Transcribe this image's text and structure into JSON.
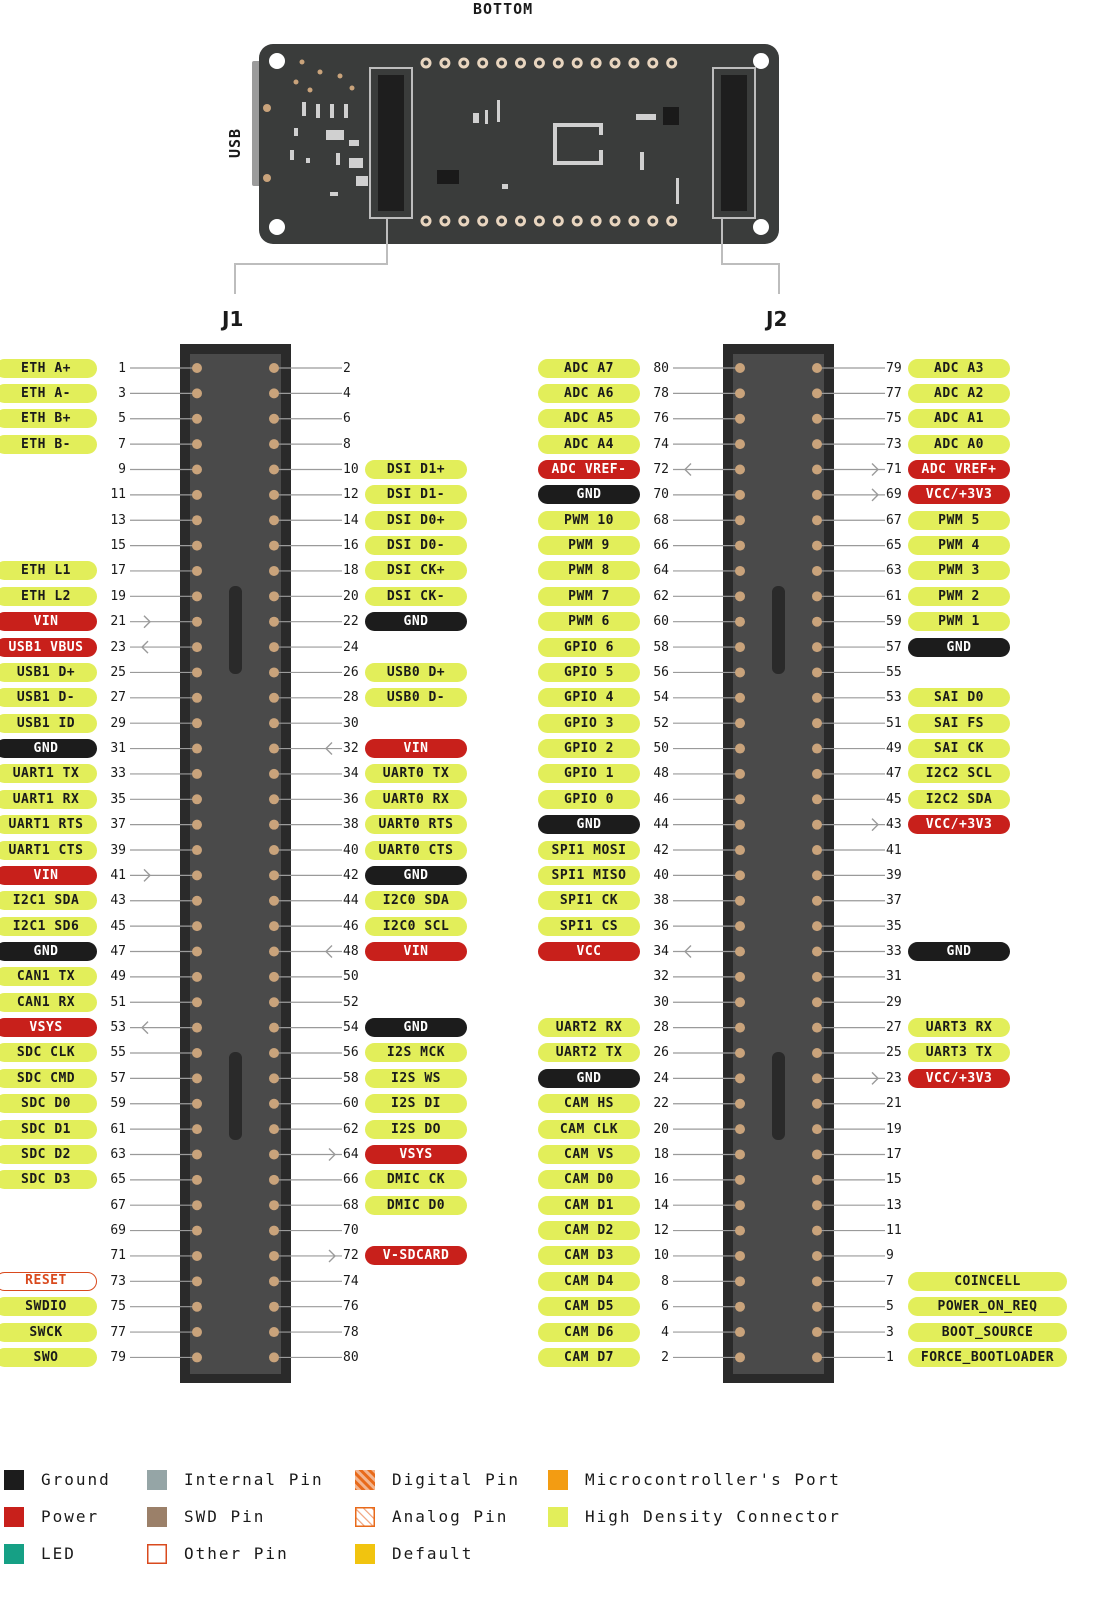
{
  "header": {
    "bottom": "BOTTOM",
    "usb": "USB"
  },
  "connectors": {
    "j1": {
      "title": "J1",
      "left": [
        {
          "n": "1",
          "label": "ETH A+",
          "type": "hdc"
        },
        {
          "n": "3",
          "label": "ETH A-",
          "type": "hdc"
        },
        {
          "n": "5",
          "label": "ETH B+",
          "type": "hdc"
        },
        {
          "n": "7",
          "label": "ETH B-",
          "type": "hdc"
        },
        {
          "n": "9"
        },
        {
          "n": "11"
        },
        {
          "n": "13"
        },
        {
          "n": "15"
        },
        {
          "n": "17",
          "label": "ETH L1",
          "type": "hdc"
        },
        {
          "n": "19",
          "label": "ETH L2",
          "type": "hdc"
        },
        {
          "n": "21",
          "label": "VIN",
          "type": "power",
          "arrow": "in"
        },
        {
          "n": "23",
          "label": "USB1 VBUS",
          "type": "power",
          "arrow": "out"
        },
        {
          "n": "25",
          "label": "USB1 D+",
          "type": "hdc"
        },
        {
          "n": "27",
          "label": "USB1 D-",
          "type": "hdc"
        },
        {
          "n": "29",
          "label": "USB1 ID",
          "type": "hdc"
        },
        {
          "n": "31",
          "label": "GND",
          "type": "ground"
        },
        {
          "n": "33",
          "label": "UART1 TX",
          "type": "hdc"
        },
        {
          "n": "35",
          "label": "UART1 RX",
          "type": "hdc"
        },
        {
          "n": "37",
          "label": "UART1 RTS",
          "type": "hdc"
        },
        {
          "n": "39",
          "label": "UART1 CTS",
          "type": "hdc"
        },
        {
          "n": "41",
          "label": "VIN",
          "type": "power",
          "arrow": "in"
        },
        {
          "n": "43",
          "label": "I2C1 SDA",
          "type": "hdc"
        },
        {
          "n": "45",
          "label": "I2C1 SD6",
          "type": "hdc"
        },
        {
          "n": "47",
          "label": "GND",
          "type": "ground"
        },
        {
          "n": "49",
          "label": "CAN1 TX",
          "type": "hdc"
        },
        {
          "n": "51",
          "label": "CAN1 RX",
          "type": "hdc"
        },
        {
          "n": "53",
          "label": "VSYS",
          "type": "power",
          "arrow": "out"
        },
        {
          "n": "55",
          "label": "SDC CLK",
          "type": "hdc"
        },
        {
          "n": "57",
          "label": "SDC CMD",
          "type": "hdc"
        },
        {
          "n": "59",
          "label": "SDC D0",
          "type": "hdc"
        },
        {
          "n": "61",
          "label": "SDC D1",
          "type": "hdc"
        },
        {
          "n": "63",
          "label": "SDC D2",
          "type": "hdc"
        },
        {
          "n": "65",
          "label": "SDC D3",
          "type": "hdc"
        },
        {
          "n": "67"
        },
        {
          "n": "69"
        },
        {
          "n": "71"
        },
        {
          "n": "73",
          "label": "RESET",
          "type": "other"
        },
        {
          "n": "75",
          "label": "SWDIO",
          "type": "hdc"
        },
        {
          "n": "77",
          "label": "SWCK",
          "type": "hdc"
        },
        {
          "n": "79",
          "label": "SWO",
          "type": "hdc"
        }
      ],
      "right": [
        {
          "n": "2"
        },
        {
          "n": "4"
        },
        {
          "n": "6"
        },
        {
          "n": "8"
        },
        {
          "n": "10",
          "label": "DSI D1+",
          "type": "hdc"
        },
        {
          "n": "12",
          "label": "DSI D1-",
          "type": "hdc"
        },
        {
          "n": "14",
          "label": "DSI D0+",
          "type": "hdc"
        },
        {
          "n": "16",
          "label": "DSI D0-",
          "type": "hdc"
        },
        {
          "n": "18",
          "label": "DSI CK+",
          "type": "hdc"
        },
        {
          "n": "20",
          "label": "DSI CK-",
          "type": "hdc"
        },
        {
          "n": "22",
          "label": "GND",
          "type": "ground"
        },
        {
          "n": "24"
        },
        {
          "n": "26",
          "label": "USB0 D+",
          "type": "hdc"
        },
        {
          "n": "28",
          "label": "USB0 D-",
          "type": "hdc"
        },
        {
          "n": "30"
        },
        {
          "n": "32",
          "label": "VIN",
          "type": "power",
          "arrow": "out"
        },
        {
          "n": "34",
          "label": "UART0 TX",
          "type": "hdc"
        },
        {
          "n": "36",
          "label": "UART0 RX",
          "type": "hdc"
        },
        {
          "n": "38",
          "label": "UART0 RTS",
          "type": "hdc"
        },
        {
          "n": "40",
          "label": "UART0 CTS",
          "type": "hdc"
        },
        {
          "n": "42",
          "label": "GND",
          "type": "ground"
        },
        {
          "n": "44",
          "label": "I2C0 SDA",
          "type": "hdc"
        },
        {
          "n": "46",
          "label": "I2C0 SCL",
          "type": "hdc"
        },
        {
          "n": "48",
          "label": "VIN",
          "type": "power",
          "arrow": "out"
        },
        {
          "n": "50"
        },
        {
          "n": "52"
        },
        {
          "n": "54",
          "label": "GND",
          "type": "ground"
        },
        {
          "n": "56",
          "label": "I2S MCK",
          "type": "hdc"
        },
        {
          "n": "58",
          "label": "I2S WS",
          "type": "hdc"
        },
        {
          "n": "60",
          "label": "I2S DI",
          "type": "hdc"
        },
        {
          "n": "62",
          "label": "I2S DO",
          "type": "hdc"
        },
        {
          "n": "64",
          "label": "VSYS",
          "type": "power",
          "arrow": "in"
        },
        {
          "n": "66",
          "label": "DMIC CK",
          "type": "hdc"
        },
        {
          "n": "68",
          "label": "DMIC D0",
          "type": "hdc"
        },
        {
          "n": "70"
        },
        {
          "n": "72",
          "label": "V-SDCARD",
          "type": "power",
          "arrow": "in"
        },
        {
          "n": "74"
        },
        {
          "n": "76"
        },
        {
          "n": "78"
        },
        {
          "n": "80"
        }
      ]
    },
    "j2": {
      "title": "J2",
      "left": [
        {
          "n": "80",
          "label": "ADC A7",
          "type": "hdc"
        },
        {
          "n": "78",
          "label": "ADC A6",
          "type": "hdc"
        },
        {
          "n": "76",
          "label": "ADC A5",
          "type": "hdc"
        },
        {
          "n": "74",
          "label": "ADC A4",
          "type": "hdc"
        },
        {
          "n": "72",
          "label": "ADC VREF-",
          "type": "power",
          "arrow": "out"
        },
        {
          "n": "70",
          "label": "GND",
          "type": "ground"
        },
        {
          "n": "68",
          "label": "PWM 10",
          "type": "hdc"
        },
        {
          "n": "66",
          "label": "PWM 9",
          "type": "hdc"
        },
        {
          "n": "64",
          "label": "PWM 8",
          "type": "hdc"
        },
        {
          "n": "62",
          "label": "PWM 7",
          "type": "hdc"
        },
        {
          "n": "60",
          "label": "PWM 6",
          "type": "hdc"
        },
        {
          "n": "58",
          "label": "GPIO 6",
          "type": "hdc"
        },
        {
          "n": "56",
          "label": "GPIO 5",
          "type": "hdc"
        },
        {
          "n": "54",
          "label": "GPIO 4",
          "type": "hdc"
        },
        {
          "n": "52",
          "label": "GPIO 3",
          "type": "hdc"
        },
        {
          "n": "50",
          "label": "GPIO 2",
          "type": "hdc"
        },
        {
          "n": "48",
          "label": "GPIO 1",
          "type": "hdc"
        },
        {
          "n": "46",
          "label": "GPIO 0",
          "type": "hdc"
        },
        {
          "n": "44",
          "label": "GND",
          "type": "ground"
        },
        {
          "n": "42",
          "label": "SPI1 MOSI",
          "type": "hdc"
        },
        {
          "n": "40",
          "label": "SPI1 MISO",
          "type": "hdc"
        },
        {
          "n": "38",
          "label": "SPI1 CK",
          "type": "hdc"
        },
        {
          "n": "36",
          "label": "SPI1 CS",
          "type": "hdc"
        },
        {
          "n": "34",
          "label": "VCC",
          "type": "power",
          "arrow": "out"
        },
        {
          "n": "32"
        },
        {
          "n": "30"
        },
        {
          "n": "28",
          "label": "UART2 RX",
          "type": "hdc"
        },
        {
          "n": "26",
          "label": "UART2 TX",
          "type": "hdc"
        },
        {
          "n": "24",
          "label": "GND",
          "type": "ground"
        },
        {
          "n": "22",
          "label": "CAM HS",
          "type": "hdc"
        },
        {
          "n": "20",
          "label": "CAM CLK",
          "type": "hdc"
        },
        {
          "n": "18",
          "label": "CAM VS",
          "type": "hdc"
        },
        {
          "n": "16",
          "label": "CAM D0",
          "type": "hdc"
        },
        {
          "n": "14",
          "label": "CAM D1",
          "type": "hdc"
        },
        {
          "n": "12",
          "label": "CAM D2",
          "type": "hdc"
        },
        {
          "n": "10",
          "label": "CAM D3",
          "type": "hdc"
        },
        {
          "n": "8",
          "label": "CAM D4",
          "type": "hdc"
        },
        {
          "n": "6",
          "label": "CAM D5",
          "type": "hdc"
        },
        {
          "n": "4",
          "label": "CAM D6",
          "type": "hdc"
        },
        {
          "n": "2",
          "label": "CAM D7",
          "type": "hdc"
        }
      ],
      "right": [
        {
          "n": "79",
          "label": "ADC A3",
          "type": "hdc"
        },
        {
          "n": "77",
          "label": "ADC A2",
          "type": "hdc"
        },
        {
          "n": "75",
          "label": "ADC A1",
          "type": "hdc"
        },
        {
          "n": "73",
          "label": "ADC A0",
          "type": "hdc"
        },
        {
          "n": "71",
          "label": "ADC VREF+",
          "type": "power",
          "arrow": "in"
        },
        {
          "n": "69",
          "label": "VCC/+3V3",
          "type": "power",
          "arrow": "in"
        },
        {
          "n": "67",
          "label": "PWM 5",
          "type": "hdc"
        },
        {
          "n": "65",
          "label": "PWM 4",
          "type": "hdc"
        },
        {
          "n": "63",
          "label": "PWM 3",
          "type": "hdc"
        },
        {
          "n": "61",
          "label": "PWM 2",
          "type": "hdc"
        },
        {
          "n": "59",
          "label": "PWM 1",
          "type": "hdc"
        },
        {
          "n": "57",
          "label": "GND",
          "type": "ground"
        },
        {
          "n": "55"
        },
        {
          "n": "53",
          "label": "SAI D0",
          "type": "hdc"
        },
        {
          "n": "51",
          "label": "SAI FS",
          "type": "hdc"
        },
        {
          "n": "49",
          "label": "SAI CK",
          "type": "hdc"
        },
        {
          "n": "47",
          "label": "I2C2 SCL",
          "type": "hdc"
        },
        {
          "n": "45",
          "label": "I2C2 SDA",
          "type": "hdc"
        },
        {
          "n": "43",
          "label": "VCC/+3V3",
          "type": "power",
          "arrow": "in"
        },
        {
          "n": "41"
        },
        {
          "n": "39"
        },
        {
          "n": "37"
        },
        {
          "n": "35"
        },
        {
          "n": "33",
          "label": "GND",
          "type": "ground"
        },
        {
          "n": "31"
        },
        {
          "n": "29"
        },
        {
          "n": "27",
          "label": "UART3 RX",
          "type": "hdc"
        },
        {
          "n": "25",
          "label": "UART3 TX",
          "type": "hdc"
        },
        {
          "n": "23",
          "label": "VCC/+3V3",
          "type": "power",
          "arrow": "in"
        },
        {
          "n": "21"
        },
        {
          "n": "19"
        },
        {
          "n": "17"
        },
        {
          "n": "15"
        },
        {
          "n": "13"
        },
        {
          "n": "11"
        },
        {
          "n": "9"
        },
        {
          "n": "7",
          "label": "COINCELL",
          "type": "hdc"
        },
        {
          "n": "5",
          "label": "POWER_ON_REQ",
          "type": "hdc"
        },
        {
          "n": "3",
          "label": "BOOT_SOURCE",
          "type": "hdc"
        },
        {
          "n": "1",
          "label": "FORCE_BOOTLOADER",
          "type": "hdc"
        }
      ]
    }
  },
  "legend": [
    {
      "label": "Ground",
      "swatch": "solid",
      "color": "#1c1c1c"
    },
    {
      "label": "Internal Pin",
      "swatch": "solid",
      "color": "#95a5a6"
    },
    {
      "label": "Digital Pin",
      "swatch": "striped",
      "color": "#e86a1a"
    },
    {
      "label": "Microcontroller's Port",
      "swatch": "solid",
      "color": "#f39c12"
    },
    {
      "label": "Power",
      "swatch": "solid",
      "color": "#c8201b"
    },
    {
      "label": "SWD Pin",
      "swatch": "solid",
      "color": "#9b8069"
    },
    {
      "label": "Analog Pin",
      "swatch": "striped-light",
      "color": "#e86a1a"
    },
    {
      "label": "High Density Connector",
      "swatch": "solid",
      "color": "#e2ee5a"
    },
    {
      "label": "LED",
      "swatch": "solid",
      "color": "#16a085"
    },
    {
      "label": "Other Pin",
      "swatch": "outline",
      "color": "#d94a1e"
    },
    {
      "label": "Default",
      "swatch": "solid",
      "color": "#f1c40f"
    }
  ],
  "colors": {
    "board": "#3a3c3b",
    "connector": "#2a2a2a",
    "connector_inner": "#4a4a4a",
    "pad": "#c9a37b",
    "line": "#9a9a9a"
  }
}
